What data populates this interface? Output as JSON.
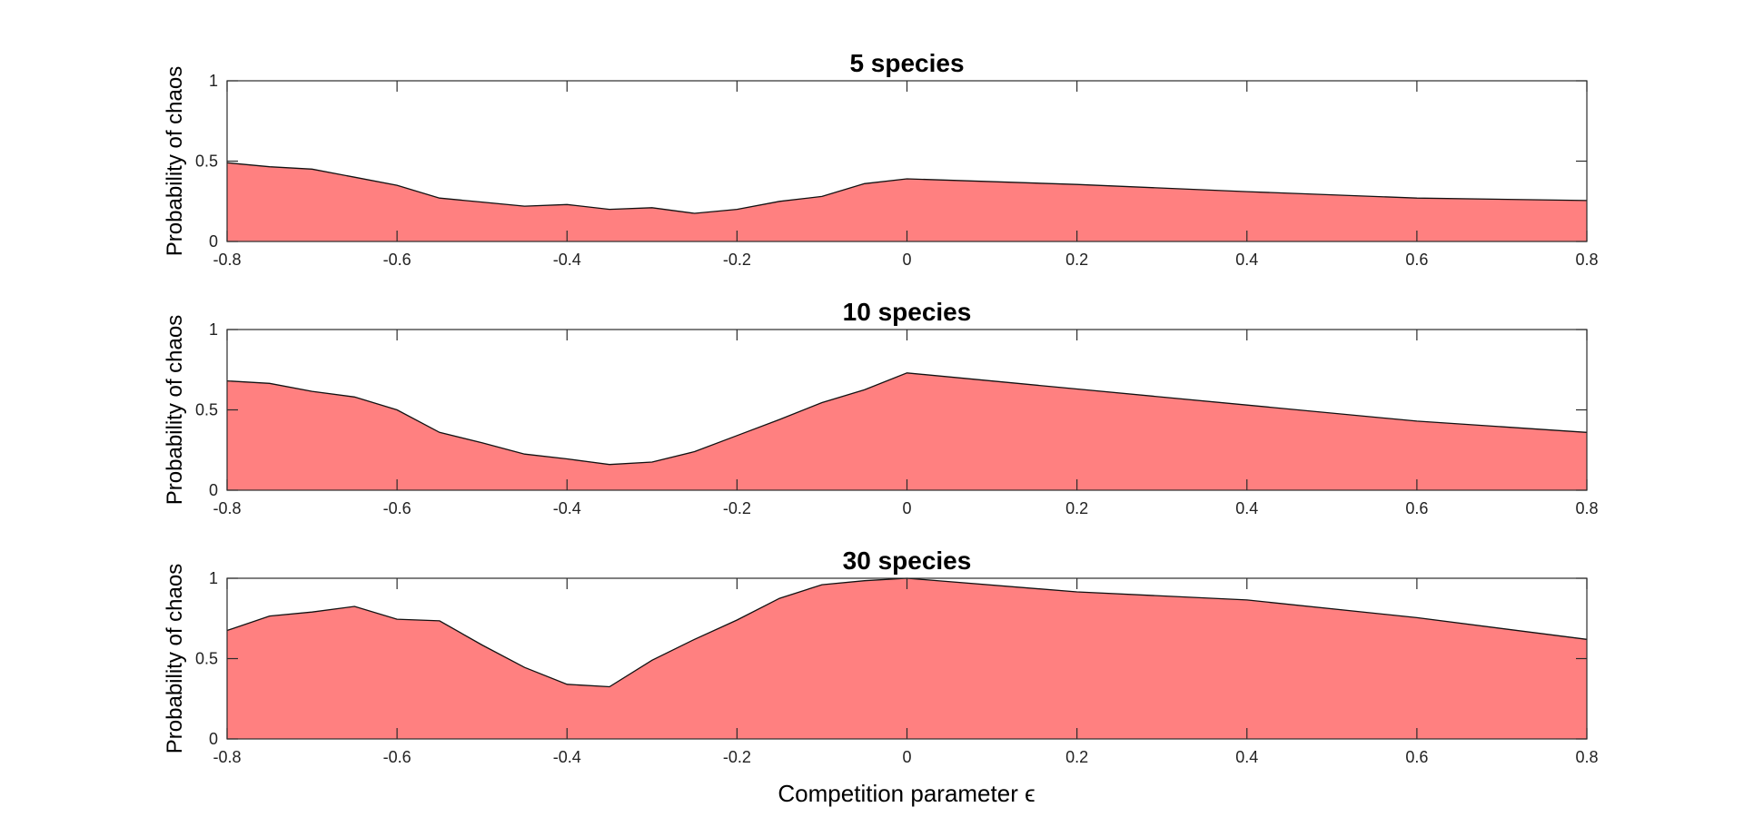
{
  "figure": {
    "xlabel": "Competition parameter ϵ"
  },
  "chart_data": [
    {
      "type": "area",
      "title": "5 species",
      "xlabel": "",
      "ylabel": "Probability of chaos",
      "xlim": [
        -0.8,
        0.8
      ],
      "ylim": [
        0,
        1
      ],
      "xticks": [
        "-0.8",
        "-0.6",
        "-0.4",
        "-0.2",
        "0",
        "0.2",
        "0.4",
        "0.6",
        "0.8"
      ],
      "yticks": [
        "0",
        "0.5",
        "1"
      ],
      "fill_color": "#ff8080",
      "grid": false,
      "x": [
        -0.8,
        -0.75,
        -0.7,
        -0.65,
        -0.6,
        -0.55,
        -0.5,
        -0.45,
        -0.4,
        -0.35,
        -0.3,
        -0.25,
        -0.2,
        -0.15,
        -0.1,
        -0.05,
        0,
        0.2,
        0.4,
        0.6,
        0.8
      ],
      "y": [
        0.49,
        0.465,
        0.45,
        0.4,
        0.35,
        0.27,
        0.245,
        0.22,
        0.23,
        0.2,
        0.21,
        0.175,
        0.2,
        0.25,
        0.28,
        0.36,
        0.39,
        0.355,
        0.31,
        0.27,
        0.255
      ]
    },
    {
      "type": "area",
      "title": "10 species",
      "xlabel": "",
      "ylabel": "Probability of chaos",
      "xlim": [
        -0.8,
        0.8
      ],
      "ylim": [
        0,
        1
      ],
      "xticks": [
        "-0.8",
        "-0.6",
        "-0.4",
        "-0.2",
        "0",
        "0.2",
        "0.4",
        "0.6",
        "0.8"
      ],
      "yticks": [
        "0",
        "0.5",
        "1"
      ],
      "fill_color": "#ff8080",
      "grid": false,
      "x": [
        -0.8,
        -0.75,
        -0.7,
        -0.65,
        -0.6,
        -0.55,
        -0.5,
        -0.45,
        -0.4,
        -0.35,
        -0.3,
        -0.25,
        -0.2,
        -0.15,
        -0.1,
        -0.05,
        0,
        0.2,
        0.4,
        0.6,
        0.8
      ],
      "y": [
        0.68,
        0.665,
        0.615,
        0.58,
        0.5,
        0.36,
        0.295,
        0.225,
        0.195,
        0.16,
        0.175,
        0.24,
        0.34,
        0.44,
        0.545,
        0.625,
        0.73,
        0.63,
        0.53,
        0.43,
        0.36
      ]
    },
    {
      "type": "area",
      "title": "30 species",
      "xlabel": "Competition parameter ϵ",
      "ylabel": "Probability of chaos",
      "xlim": [
        -0.8,
        0.8
      ],
      "ylim": [
        0,
        1
      ],
      "xticks": [
        "-0.8",
        "-0.6",
        "-0.4",
        "-0.2",
        "0",
        "0.2",
        "0.4",
        "0.6",
        "0.8"
      ],
      "yticks": [
        "0",
        "0.5",
        "1"
      ],
      "fill_color": "#ff8080",
      "grid": false,
      "x": [
        -0.8,
        -0.75,
        -0.7,
        -0.65,
        -0.6,
        -0.55,
        -0.5,
        -0.45,
        -0.4,
        -0.35,
        -0.3,
        -0.25,
        -0.2,
        -0.15,
        -0.1,
        -0.05,
        0,
        0.2,
        0.4,
        0.6,
        0.8
      ],
      "y": [
        0.675,
        0.765,
        0.79,
        0.825,
        0.745,
        0.735,
        0.585,
        0.445,
        0.34,
        0.325,
        0.49,
        0.62,
        0.74,
        0.875,
        0.96,
        0.985,
        1.0,
        0.915,
        0.865,
        0.755,
        0.62
      ]
    }
  ]
}
